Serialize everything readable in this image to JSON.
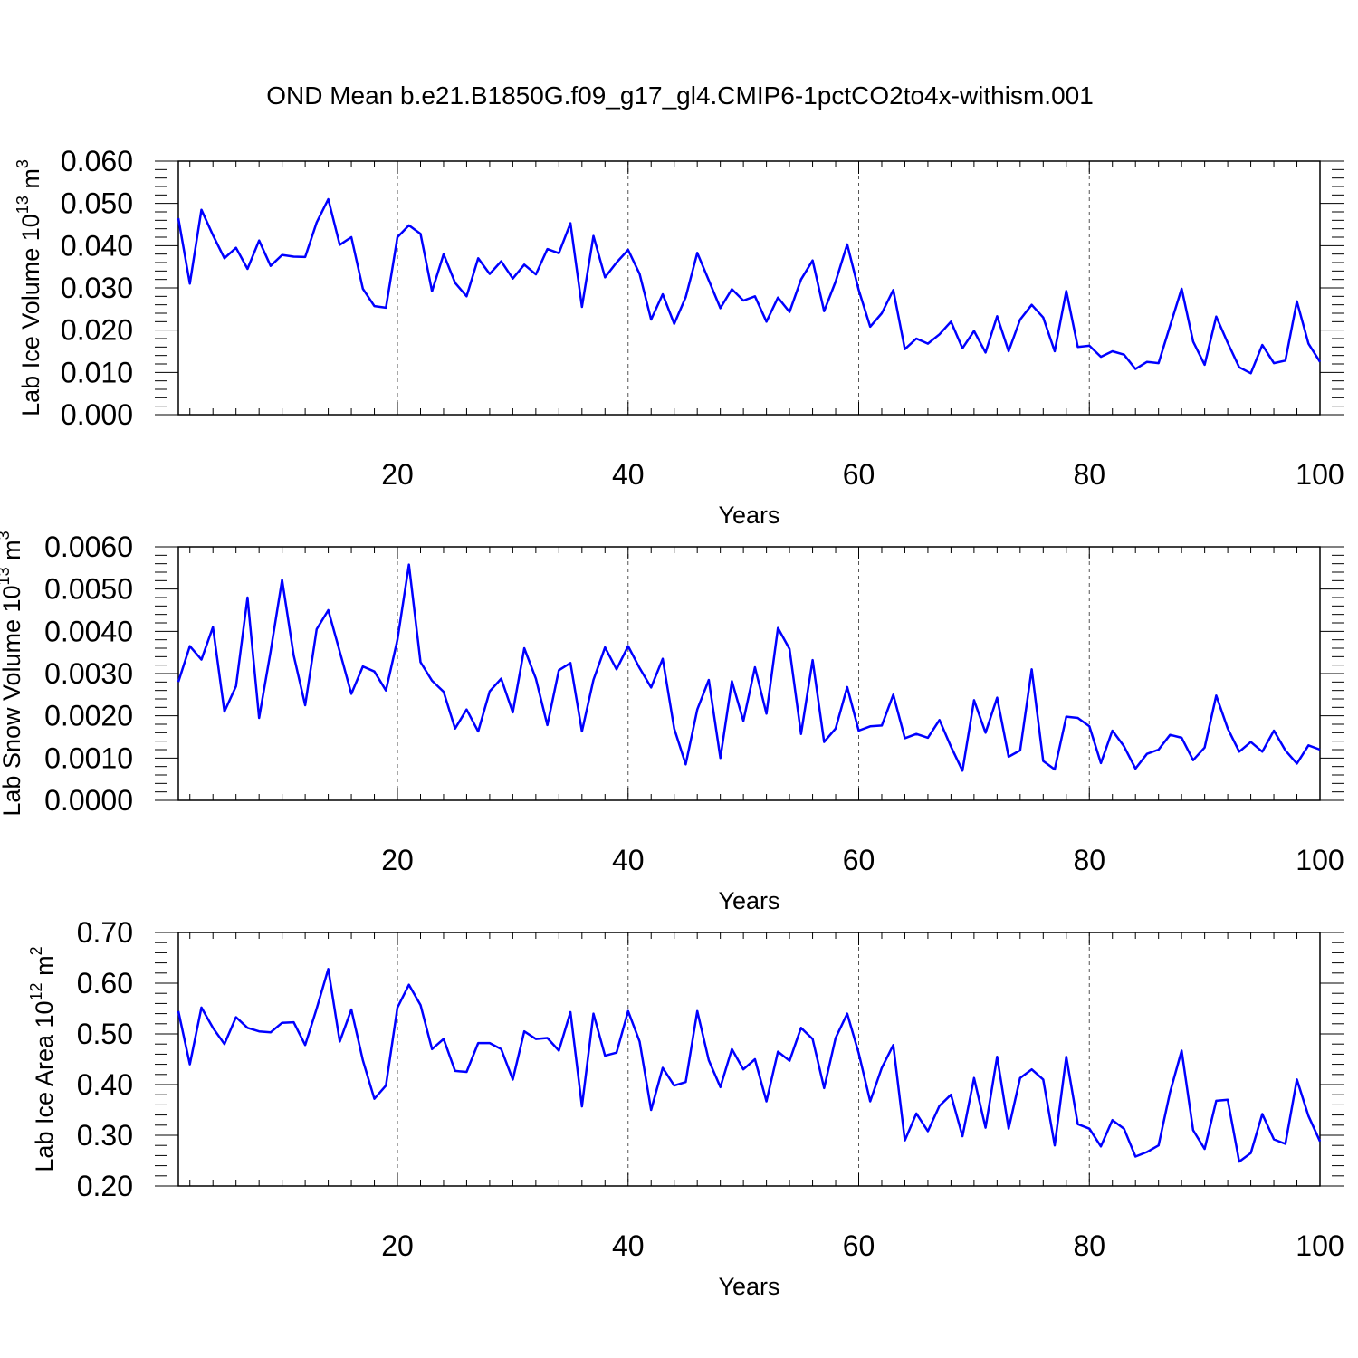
{
  "title": "OND Mean b.e21.B1850G.f09_g17_gl4.CMIP6-1pctCO2to4x-withism.001",
  "chart_data": [
    {
      "type": "line",
      "title": "OND Mean b.e21.B1850G.f09_g17_gl4.CMIP6-1pctCO2to4x-withism.001",
      "xlabel": "Years",
      "ylabel": "Lab Ice Volume 10",
      "ylabel_exp": "13",
      "ylabel_unit": " m",
      "ylabel_unit_exp": "3",
      "xlim": [
        1,
        100
      ],
      "ylim": [
        0,
        0.06
      ],
      "yticks": [
        0,
        0.01,
        0.02,
        0.03,
        0.04,
        0.05,
        0.06
      ],
      "ytick_labels": [
        "0.000",
        "0.010",
        "0.020",
        "0.030",
        "0.040",
        "0.050",
        "0.060"
      ],
      "xticks": [
        20,
        40,
        60,
        80,
        100
      ],
      "xtick_labels": [
        "20",
        "40",
        "60",
        "80",
        "100"
      ],
      "grid": "dashed vertical at major x ticks",
      "line_color": "#0000ff",
      "series": [
        {
          "name": "Lab Ice Volume",
          "x_start": 1,
          "values": [
            0.0465,
            0.031,
            0.0485,
            0.0425,
            0.037,
            0.0395,
            0.0345,
            0.0412,
            0.0352,
            0.0378,
            0.0374,
            0.0373,
            0.0455,
            0.051,
            0.0402,
            0.042,
            0.0298,
            0.0257,
            0.0253,
            0.042,
            0.0448,
            0.0428,
            0.0292,
            0.038,
            0.0312,
            0.028,
            0.037,
            0.0333,
            0.0363,
            0.0322,
            0.0355,
            0.0332,
            0.0392,
            0.0382,
            0.0453,
            0.0255,
            0.0423,
            0.0325,
            0.036,
            0.039,
            0.0333,
            0.0225,
            0.0285,
            0.0215,
            0.0278,
            0.0383,
            0.0318,
            0.0252,
            0.0297,
            0.027,
            0.028,
            0.022,
            0.0277,
            0.0243,
            0.032,
            0.0365,
            0.0245,
            0.0315,
            0.0403,
            0.0295,
            0.0208,
            0.024,
            0.0295,
            0.0155,
            0.018,
            0.0168,
            0.019,
            0.022,
            0.0157,
            0.0198,
            0.0147,
            0.0233,
            0.015,
            0.0225,
            0.026,
            0.023,
            0.015,
            0.0293,
            0.016,
            0.0163,
            0.0137,
            0.015,
            0.0142,
            0.0108,
            0.0125,
            0.0122,
            0.021,
            0.0298,
            0.0173,
            0.0118,
            0.0232,
            0.017,
            0.0112,
            0.0098,
            0.0165,
            0.0122,
            0.0128,
            0.0268,
            0.0168,
            0.0125
          ]
        }
      ]
    },
    {
      "type": "line",
      "xlabel": "Years",
      "ylabel": "Lab Snow Volume 10",
      "ylabel_exp": "13",
      "ylabel_unit": " m",
      "ylabel_unit_exp": "3",
      "xlim": [
        1,
        100
      ],
      "ylim": [
        0,
        0.006
      ],
      "yticks": [
        0,
        0.001,
        0.002,
        0.003,
        0.004,
        0.005,
        0.006
      ],
      "ytick_labels": [
        "0.0000",
        "0.0010",
        "0.0020",
        "0.0030",
        "0.0040",
        "0.0050",
        "0.0060"
      ],
      "xticks": [
        20,
        40,
        60,
        80,
        100
      ],
      "xtick_labels": [
        "20",
        "40",
        "60",
        "80",
        "100"
      ],
      "grid": "dashed vertical at major x ticks",
      "line_color": "#0000ff",
      "series": [
        {
          "name": "Lab Snow Volume",
          "x_start": 1,
          "values": [
            0.0028,
            0.00365,
            0.00333,
            0.0041,
            0.0021,
            0.0027,
            0.0048,
            0.00195,
            0.00352,
            0.00522,
            0.00343,
            0.00225,
            0.00405,
            0.0045,
            0.00352,
            0.00252,
            0.00317,
            0.00305,
            0.0026,
            0.0038,
            0.00558,
            0.00327,
            0.00283,
            0.00257,
            0.0017,
            0.00215,
            0.00163,
            0.00258,
            0.00288,
            0.00208,
            0.0036,
            0.00288,
            0.00178,
            0.00308,
            0.00325,
            0.00163,
            0.00285,
            0.00362,
            0.0031,
            0.00365,
            0.00313,
            0.00267,
            0.00335,
            0.0017,
            0.00085,
            0.00215,
            0.00285,
            0.001,
            0.00282,
            0.00188,
            0.00315,
            0.00205,
            0.00408,
            0.00358,
            0.00157,
            0.00332,
            0.00138,
            0.0017,
            0.00268,
            0.00165,
            0.00175,
            0.00177,
            0.0025,
            0.00147,
            0.00157,
            0.00148,
            0.0019,
            0.00127,
            0.0007,
            0.00237,
            0.0016,
            0.00243,
            0.00103,
            0.00118,
            0.0031,
            0.00093,
            0.00073,
            0.00198,
            0.00195,
            0.00175,
            0.00088,
            0.00165,
            0.00128,
            0.00075,
            0.0011,
            0.0012,
            0.00155,
            0.00148,
            0.00095,
            0.00125,
            0.00248,
            0.0017,
            0.00115,
            0.00138,
            0.00115,
            0.00165,
            0.00118,
            0.00087,
            0.0013,
            0.0012
          ]
        }
      ]
    },
    {
      "type": "line",
      "xlabel": "Years",
      "ylabel": "Lab Ice Area 10",
      "ylabel_exp": "12",
      "ylabel_unit": " m",
      "ylabel_unit_exp": "2",
      "xlim": [
        1,
        100
      ],
      "ylim": [
        0.2,
        0.7
      ],
      "yticks": [
        0.2,
        0.3,
        0.4,
        0.5,
        0.6,
        0.7
      ],
      "ytick_labels": [
        "0.20",
        "0.30",
        "0.40",
        "0.50",
        "0.60",
        "0.70"
      ],
      "xticks": [
        20,
        40,
        60,
        80,
        100
      ],
      "xtick_labels": [
        "20",
        "40",
        "60",
        "80",
        "100"
      ],
      "grid": "dashed vertical at major x ticks",
      "line_color": "#0000ff",
      "series": [
        {
          "name": "Lab Ice Area",
          "x_start": 1,
          "values": [
            0.545,
            0.44,
            0.552,
            0.512,
            0.48,
            0.533,
            0.512,
            0.505,
            0.503,
            0.522,
            0.523,
            0.478,
            0.55,
            0.628,
            0.485,
            0.548,
            0.448,
            0.372,
            0.398,
            0.552,
            0.597,
            0.557,
            0.47,
            0.49,
            0.427,
            0.425,
            0.482,
            0.482,
            0.47,
            0.41,
            0.505,
            0.49,
            0.492,
            0.467,
            0.543,
            0.357,
            0.54,
            0.457,
            0.463,
            0.545,
            0.485,
            0.35,
            0.433,
            0.398,
            0.405,
            0.545,
            0.448,
            0.395,
            0.47,
            0.43,
            0.45,
            0.367,
            0.465,
            0.447,
            0.512,
            0.49,
            0.393,
            0.492,
            0.54,
            0.462,
            0.367,
            0.433,
            0.478,
            0.29,
            0.343,
            0.308,
            0.358,
            0.38,
            0.298,
            0.413,
            0.315,
            0.455,
            0.313,
            0.413,
            0.43,
            0.41,
            0.28,
            0.455,
            0.322,
            0.313,
            0.278,
            0.33,
            0.313,
            0.258,
            0.267,
            0.28,
            0.385,
            0.467,
            0.31,
            0.273,
            0.368,
            0.37,
            0.248,
            0.265,
            0.342,
            0.292,
            0.283,
            0.41,
            0.338,
            0.288
          ]
        }
      ]
    }
  ]
}
